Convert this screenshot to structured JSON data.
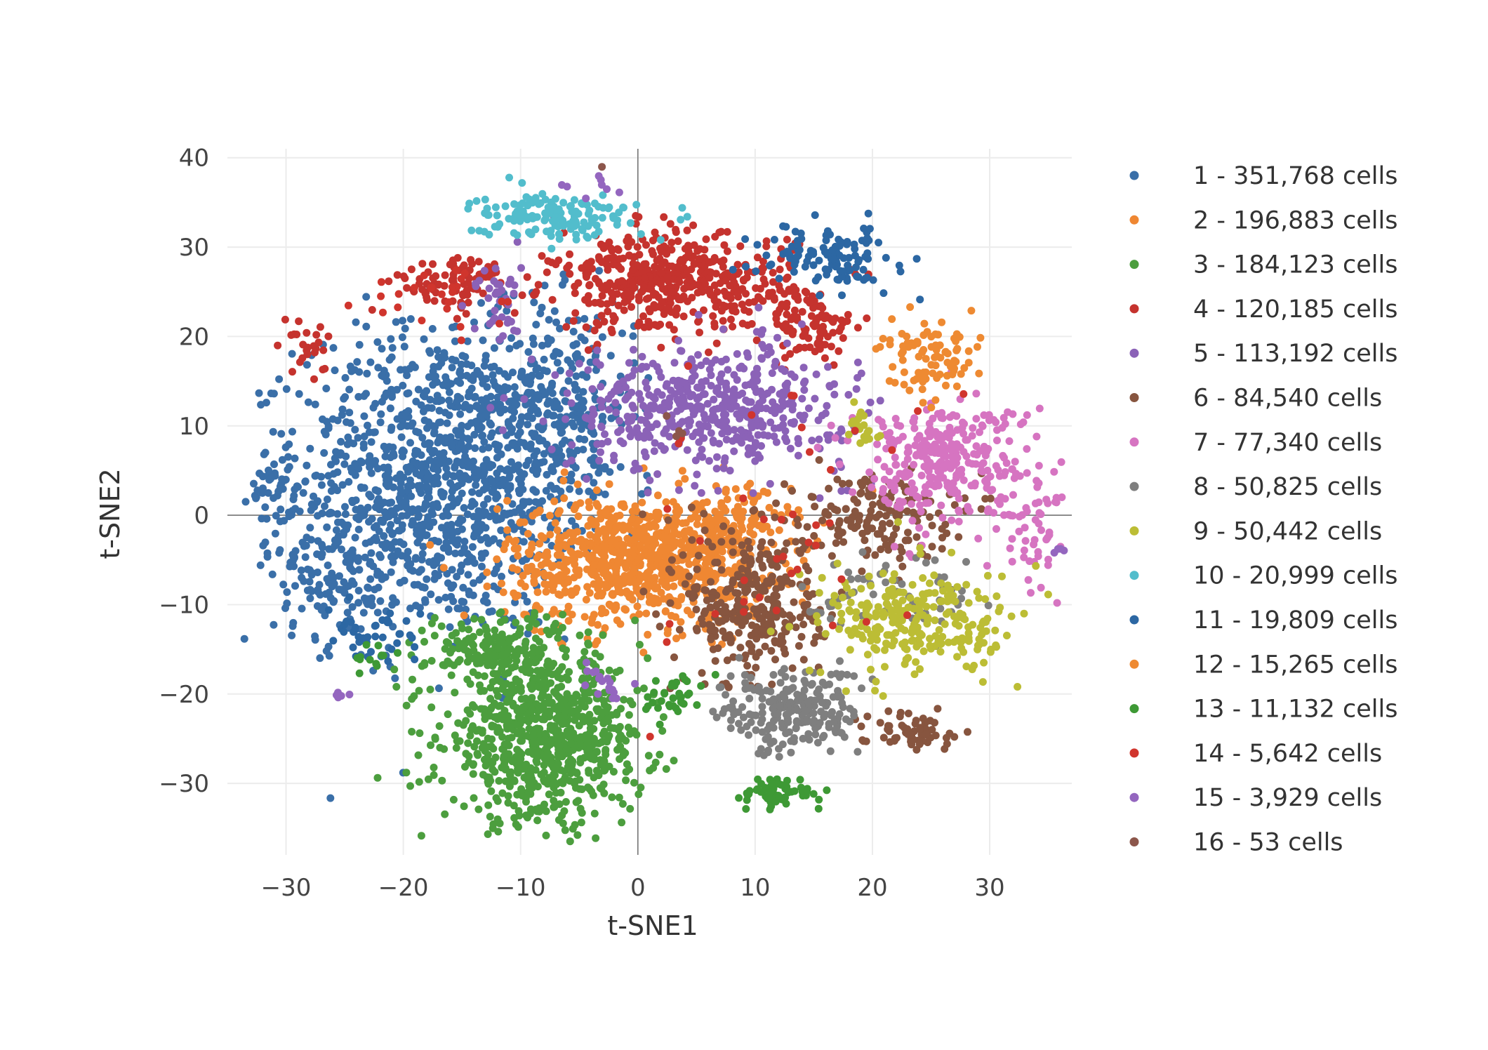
{
  "chart_data": {
    "type": "scatter",
    "title": "",
    "xlabel": "t-SNE1",
    "ylabel": "t-SNE2",
    "xlim": [
      -35,
      37
    ],
    "ylim": [
      -38,
      41
    ],
    "x_ticks": [
      -30,
      -20,
      -10,
      0,
      10,
      20,
      30
    ],
    "y_ticks": [
      40,
      30,
      20,
      10,
      0,
      -10,
      -20,
      -30
    ],
    "x_tick_labels": [
      "−30",
      "−20",
      "−10",
      "0",
      "10",
      "20",
      "30"
    ],
    "y_tick_labels": [
      "40",
      "30",
      "20",
      "10",
      "0",
      "−10",
      "−20",
      "−30"
    ],
    "grid": true,
    "zero_lines": true,
    "legend_position": "right",
    "series": [
      {
        "name": "1 - 351,768 cells",
        "color": "#3a6fa8",
        "clusters": [
          {
            "x": -17,
            "y": 4,
            "sx": 7,
            "sy": 10,
            "n": 1100
          },
          {
            "x": -7,
            "y": 12,
            "sx": 4,
            "sy": 7,
            "n": 300
          },
          {
            "x": -26,
            "y": -6,
            "sx": 3,
            "sy": 5,
            "n": 140
          },
          {
            "x": -31,
            "y": 3,
            "sx": 1.2,
            "sy": 3,
            "n": 40
          }
        ]
      },
      {
        "name": "2 - 196,883 cells",
        "color": "#ef8732",
        "clusters": [
          {
            "x": 0,
            "y": -5,
            "sx": 6.5,
            "sy": 4.2,
            "n": 850
          },
          {
            "x": 8,
            "y": -1,
            "sx": 3,
            "sy": 2.5,
            "n": 120
          }
        ]
      },
      {
        "name": "3 - 184,123 cells",
        "color": "#4c9e3e",
        "clusters": [
          {
            "x": -8,
            "y": -25,
            "sx": 5,
            "sy": 5.5,
            "n": 800
          },
          {
            "x": -12,
            "y": -15,
            "sx": 3.5,
            "sy": 2.5,
            "n": 180
          }
        ]
      },
      {
        "name": "4 - 120,185 cells",
        "color": "#c5332e",
        "clusters": [
          {
            "x": 3,
            "y": 26,
            "sx": 6,
            "sy": 3.2,
            "n": 500
          },
          {
            "x": 15,
            "y": 21,
            "sx": 2.2,
            "sy": 2.5,
            "n": 90
          },
          {
            "x": -16,
            "y": 26,
            "sx": 3,
            "sy": 1.8,
            "n": 80
          },
          {
            "x": -28,
            "y": 19.5,
            "sx": 1.2,
            "sy": 2,
            "n": 25
          }
        ]
      },
      {
        "name": "5 - 113,192 cells",
        "color": "#8b62b7",
        "clusters": [
          {
            "x": 6,
            "y": 12,
            "sx": 7,
            "sy": 4,
            "n": 520
          },
          {
            "x": -12,
            "y": 24,
            "sx": 1.2,
            "sy": 3,
            "n": 40
          }
        ]
      },
      {
        "name": "6 - 84,540 cells",
        "color": "#87553f",
        "clusters": [
          {
            "x": 10,
            "y": -10,
            "sx": 3.5,
            "sy": 5.5,
            "n": 320
          },
          {
            "x": 20,
            "y": 0,
            "sx": 4,
            "sy": 3,
            "n": 160
          },
          {
            "x": 23,
            "y": -24,
            "sx": 2.5,
            "sy": 1.2,
            "n": 60
          }
        ]
      },
      {
        "name": "7 - 77,340 cells",
        "color": "#d674c1",
        "clusters": [
          {
            "x": 26,
            "y": 6,
            "sx": 4.5,
            "sy": 4,
            "n": 320
          },
          {
            "x": 34,
            "y": -2,
            "sx": 2,
            "sy": 4,
            "n": 50
          }
        ]
      },
      {
        "name": "8 - 50,825 cells",
        "color": "#7f7f7f",
        "clusters": [
          {
            "x": 13,
            "y": -22,
            "sx": 3.5,
            "sy": 2.8,
            "n": 220
          },
          {
            "x": 23,
            "y": -9,
            "sx": 5,
            "sy": 3,
            "n": 60
          }
        ]
      },
      {
        "name": "9 - 50,442 cells",
        "color": "#bcbd35",
        "clusters": [
          {
            "x": 24,
            "y": -12,
            "sx": 5,
            "sy": 3.5,
            "n": 260
          },
          {
            "x": 19,
            "y": 10,
            "sx": 0.8,
            "sy": 1.5,
            "n": 20
          }
        ]
      },
      {
        "name": "10 - 20,999 cells",
        "color": "#52bdcc",
        "clusters": [
          {
            "x": -7,
            "y": 33.5,
            "sx": 4,
            "sy": 1.5,
            "n": 150
          }
        ]
      },
      {
        "name": "11 - 19,809 cells",
        "color": "#2c67a3",
        "clusters": [
          {
            "x": 16,
            "y": 29,
            "sx": 3.5,
            "sy": 2,
            "n": 120
          },
          {
            "x": -22,
            "y": -14,
            "sx": 2.5,
            "sy": 1.8,
            "n": 40
          }
        ]
      },
      {
        "name": "12 - 15,265 cells",
        "color": "#ee8a32",
        "clusters": [
          {
            "x": 25,
            "y": 17,
            "sx": 2.5,
            "sy": 2.5,
            "n": 90
          }
        ]
      },
      {
        "name": "13 - 11,132 cells",
        "color": "#3e9935",
        "clusters": [
          {
            "x": 12,
            "y": -31,
            "sx": 2,
            "sy": 1.2,
            "n": 60
          },
          {
            "x": 3,
            "y": -20,
            "sx": 1.5,
            "sy": 1.3,
            "n": 35
          },
          {
            "x": -23,
            "y": -16,
            "sx": 1.2,
            "sy": 0.8,
            "n": 12
          }
        ]
      },
      {
        "name": "14 - 5,642 cells",
        "color": "#d0352d",
        "clusters": [
          {
            "x": -18,
            "y": 24,
            "sx": 4,
            "sy": 3,
            "n": 25
          },
          {
            "x": 14,
            "y": -3,
            "sx": 8,
            "sy": 10,
            "n": 40
          }
        ]
      },
      {
        "name": "15 - 3,929 cells",
        "color": "#9466bf",
        "clusters": [
          {
            "x": 37,
            "y": -4,
            "sx": 0.8,
            "sy": 1.5,
            "n": 15
          },
          {
            "x": -25,
            "y": -20,
            "sx": 0.6,
            "sy": 0.3,
            "n": 6
          },
          {
            "x": -3,
            "y": -19,
            "sx": 1,
            "sy": 1.5,
            "n": 18
          },
          {
            "x": -4,
            "y": 37,
            "sx": 1.5,
            "sy": 0.8,
            "n": 8
          }
        ]
      },
      {
        "name": "16 - 53 cells",
        "color": "#8c564b",
        "clusters": [
          {
            "x": -3,
            "y": 39,
            "sx": 0.3,
            "sy": 0.3,
            "n": 1
          },
          {
            "x": 2,
            "y": 8,
            "sx": 3,
            "sy": 2,
            "n": 4
          }
        ]
      }
    ]
  }
}
